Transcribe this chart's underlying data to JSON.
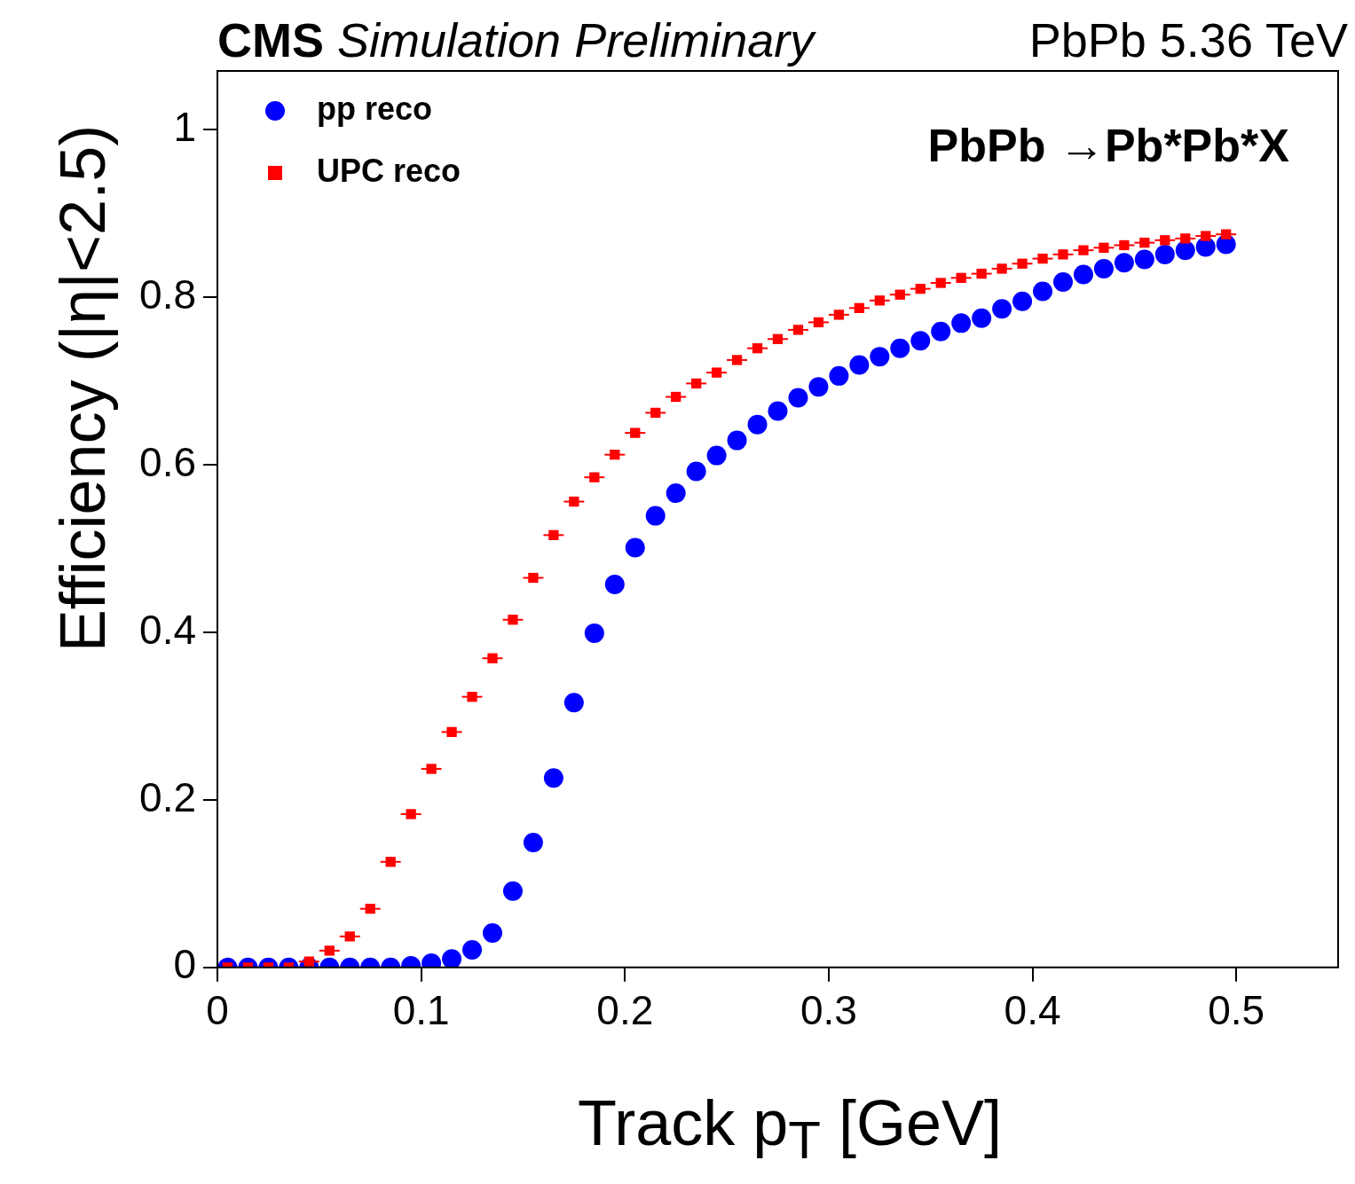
{
  "chart_data": {
    "type": "scatter",
    "title": "CMS",
    "subtitle": "Simulation Preliminary",
    "annotations": [
      "PbPb 5.36 TeV",
      "PbPb →Pb*Pb*X"
    ],
    "xlabel": "Track p$_{T}$ [GeV]",
    "ylabel": "Efficiency (|η|<2.5)",
    "x": [
      0.005,
      0.015,
      0.025,
      0.035,
      0.045,
      0.055,
      0.065,
      0.075,
      0.085,
      0.095,
      0.105,
      0.115,
      0.125,
      0.135,
      0.145,
      0.155,
      0.165,
      0.175,
      0.185,
      0.195,
      0.205,
      0.215,
      0.225,
      0.235,
      0.245,
      0.255,
      0.265,
      0.275,
      0.285,
      0.295,
      0.305,
      0.315,
      0.325,
      0.335,
      0.345,
      0.355,
      0.365,
      0.375,
      0.385,
      0.395,
      0.405,
      0.415,
      0.425,
      0.435,
      0.445,
      0.455,
      0.465,
      0.475,
      0.485,
      0.495
    ],
    "series": [
      {
        "name": "pp reco",
        "color": "#0000ff",
        "marker": "circle",
        "values": [
          0,
          0,
          0,
          0,
          0,
          0,
          0,
          0,
          0,
          0.002,
          0.005,
          0.01,
          0.021,
          0.041,
          0.091,
          0.149,
          0.226,
          0.316,
          0.399,
          0.457,
          0.501,
          0.539,
          0.566,
          0.592,
          0.611,
          0.629,
          0.648,
          0.664,
          0.68,
          0.693,
          0.706,
          0.719,
          0.729,
          0.739,
          0.748,
          0.759,
          0.769,
          0.775,
          0.786,
          0.795,
          0.807,
          0.818,
          0.827,
          0.834,
          0.841,
          0.845,
          0.851,
          0.856,
          0.86,
          0.863
        ]
      },
      {
        "name": "UPC reco",
        "color": "#ff0000",
        "marker": "square",
        "xerrors": [
          null,
          null,
          null,
          null,
          0.005,
          0.005,
          0.005,
          0.005,
          0.005,
          0.005,
          0.005,
          0.005,
          0.005,
          0.005,
          0.005,
          0.005,
          0.005,
          0.005,
          0.005,
          0.005,
          0.005,
          0.005,
          0.005,
          0.005,
          0.005,
          0.005,
          0.005,
          0.005,
          0.005,
          0.005,
          0.005,
          0.005,
          0.005,
          0.005,
          0.005,
          0.005,
          0.005,
          0.005,
          0.005,
          0.005,
          0.005,
          0.005,
          0.005,
          0.005,
          0.005,
          0.005,
          0.005,
          0.005,
          0.005,
          0.005
        ],
        "values": [
          0,
          0,
          0,
          0,
          0.007,
          0.02,
          0.037,
          0.07,
          0.126,
          0.183,
          0.237,
          0.281,
          0.323,
          0.369,
          0.415,
          0.465,
          0.516,
          0.556,
          0.585,
          0.612,
          0.638,
          0.662,
          0.681,
          0.697,
          0.71,
          0.725,
          0.739,
          0.75,
          0.761,
          0.77,
          0.779,
          0.787,
          0.796,
          0.803,
          0.81,
          0.817,
          0.823,
          0.828,
          0.834,
          0.84,
          0.846,
          0.851,
          0.856,
          0.859,
          0.862,
          0.865,
          0.868,
          0.87,
          0.873,
          0.875
        ]
      }
    ],
    "xlim": [
      0,
      0.55
    ],
    "ylim": [
      0,
      1.07
    ],
    "xticks": [
      0,
      0.1,
      0.2,
      0.3,
      0.4,
      0.5
    ],
    "yticks": [
      0,
      0.2,
      0.4,
      0.6,
      0.8,
      1
    ],
    "grid": false,
    "legend": "top left"
  }
}
